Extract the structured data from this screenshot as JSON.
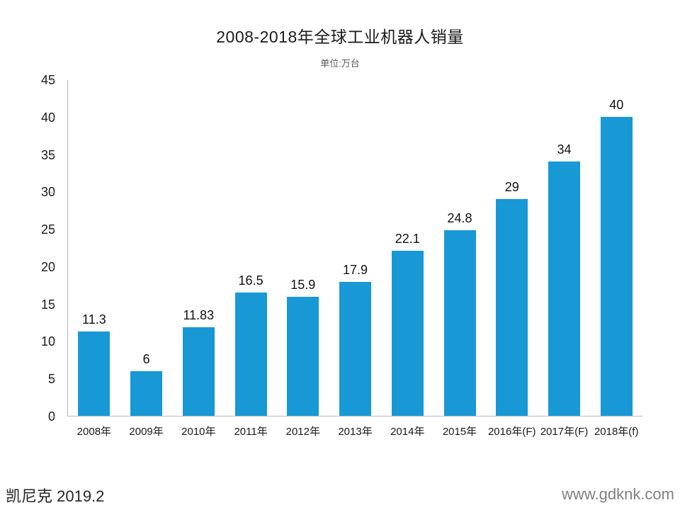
{
  "chart_data": {
    "type": "bar",
    "title": "2008-2018年全球工业机器人销量",
    "subtitle": "单位:万台",
    "categories": [
      "2008年",
      "2009年",
      "2010年",
      "2011年",
      "2012年",
      "2013年",
      "2014年",
      "2015年",
      "2016年(F)",
      "2017年(F)",
      "2018年(f)"
    ],
    "values": [
      11.3,
      6,
      11.83,
      16.5,
      15.9,
      17.9,
      22.1,
      24.8,
      29,
      34,
      40
    ],
    "value_labels": [
      "11.3",
      "6",
      "11.83",
      "16.5",
      "15.9",
      "17.9",
      "22.1",
      "24.8",
      "29",
      "34",
      "40"
    ],
    "xlabel": "",
    "ylabel": "",
    "ylim": [
      0,
      45
    ],
    "yticks": [
      0,
      5,
      10,
      15,
      20,
      25,
      30,
      35,
      40,
      45
    ],
    "grid": false,
    "legend": "none",
    "bar_color": "#1898d5",
    "axis_color": "#b7b7b7"
  },
  "footer": {
    "brand": "凯尼克 2019.2",
    "website": "www.gdknk.com"
  }
}
